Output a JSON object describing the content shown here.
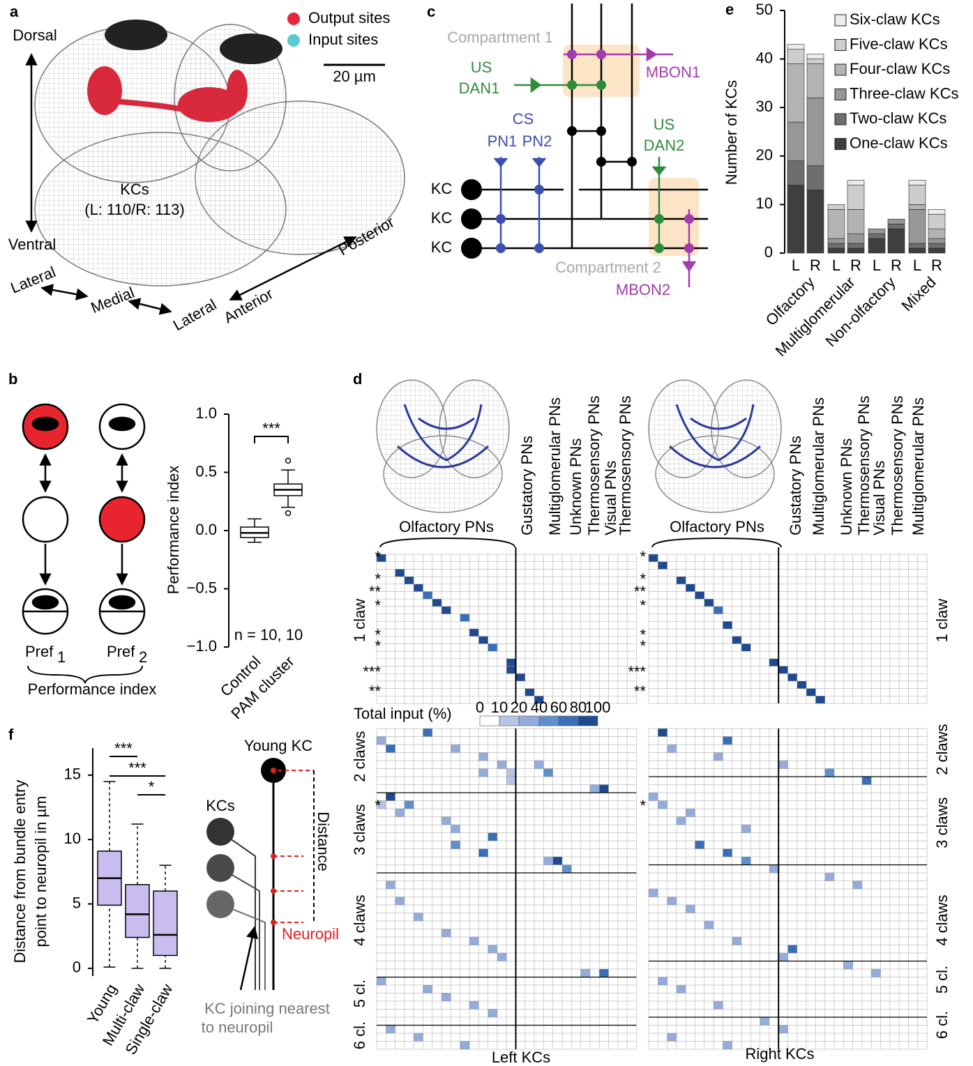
{
  "labels": {
    "a": "a",
    "b": "b",
    "c": "c",
    "d": "d",
    "e": "e",
    "f": "f"
  },
  "panel_a": {
    "legend": [
      "Output sites",
      "Input sites"
    ],
    "scale_bar": "20 µm",
    "dorsal": "Dorsal",
    "ventral": "Ventral",
    "lateral_1": "Lateral",
    "medial": "Medial",
    "lateral_2": "Lateral",
    "anterior": "Anterior",
    "posterior": "Posterior",
    "cell_label": "KCs",
    "cell_count": "(L: 110/R: 113)"
  },
  "panel_b_diagram": {
    "pref_1": "Pref",
    "sub_1": "1",
    "pref_2": "Pref",
    "sub_2": "2",
    "caption": "Performance index"
  },
  "panel_c": {
    "compartment_1": "Compartment 1",
    "us_1": "US",
    "dan_1": "DAN1",
    "mbon_1": "MBON1",
    "cs": "CS",
    "pn_1": "PN1",
    "pn_2": "PN2",
    "us_2": "US",
    "dan_2": "DAN2",
    "kc": [
      "KC",
      "KC",
      "KC"
    ],
    "compartment_2": "Compartment 2",
    "mbon_2": "MBON2"
  },
  "panel_d": {
    "column_groups_left": [
      "Olfactory PNs",
      "Gustatory PNs",
      "Multiglomerular PNs",
      "Unknown PNs",
      "Thermosensory PNs",
      "Visual PNs",
      "Thermosensory PNs"
    ],
    "column_groups_right": [
      "Olfactory PNs",
      "Gustatory PNs",
      "Multiglomerular PNs",
      "Unknown PNs",
      "Thermosensory PNs",
      "Visual PNs",
      "Thermosensory PNs",
      "Multiglomerular PNs"
    ],
    "rows_left": [
      "1 claw",
      "2 claws",
      "3 claws",
      "4 claws",
      "5 cl.",
      "6 cl."
    ],
    "rows_right": [
      "1 claw",
      "2 claws",
      "3 claws",
      "4 claws",
      "5 cl.",
      "6 cl."
    ],
    "scale_title": "Total input (%)",
    "scale_ticks": [
      0,
      10,
      20,
      40,
      60,
      80,
      100
    ],
    "scale_colors": [
      "#ffffff",
      "#b7c4e5",
      "#93acdb",
      "#5f8fcc",
      "#3a6fb8",
      "#1f4a8f"
    ],
    "x_left": "Left KCs",
    "x_right": "Right KCs",
    "stars_left": [
      "*",
      "*",
      "**",
      "*",
      "*",
      "*",
      "***",
      "**",
      "*"
    ],
    "stars_right": [
      "*",
      "*",
      "**",
      "*",
      "*",
      "*",
      "***",
      "**",
      "*"
    ],
    "left": {
      "top_cells": [
        [
          0,
          0,
          80
        ],
        [
          2,
          2,
          80
        ],
        [
          3,
          3,
          80
        ],
        [
          4,
          4,
          80
        ],
        [
          5,
          5,
          70
        ],
        [
          6,
          6,
          80
        ],
        [
          7,
          7,
          80
        ],
        [
          8,
          9,
          70
        ],
        [
          10,
          10,
          80
        ],
        [
          11,
          11,
          90
        ],
        [
          12,
          12,
          70
        ],
        [
          14,
          14,
          80
        ],
        [
          15,
          14,
          80
        ],
        [
          16,
          15,
          80
        ],
        [
          18,
          16,
          80
        ],
        [
          19,
          17,
          80
        ]
      ],
      "bottom_cells": [
        [
          0,
          5,
          70
        ],
        [
          1,
          0,
          20
        ],
        [
          2,
          1,
          60
        ],
        [
          2,
          8,
          30
        ],
        [
          3,
          11,
          20
        ],
        [
          4,
          13,
          20
        ],
        [
          4,
          17,
          20
        ],
        [
          5,
          11,
          20
        ],
        [
          5,
          14,
          15
        ],
        [
          5,
          18,
          50
        ],
        [
          6,
          14,
          15
        ],
        [
          7,
          23,
          20
        ],
        [
          7,
          24,
          80
        ],
        [
          8,
          1,
          80
        ],
        [
          9,
          0,
          15
        ],
        [
          9,
          3,
          40
        ],
        [
          10,
          2,
          20
        ],
        [
          11,
          7,
          20
        ],
        [
          12,
          8,
          20
        ],
        [
          13,
          12,
          70
        ],
        [
          14,
          8,
          40
        ],
        [
          15,
          11,
          60
        ],
        [
          16,
          18,
          30
        ],
        [
          16,
          19,
          80
        ],
        [
          17,
          20,
          40
        ],
        [
          19,
          1,
          20
        ],
        [
          21,
          2,
          20
        ],
        [
          23,
          4,
          20
        ],
        [
          25,
          7,
          20
        ],
        [
          26,
          10,
          20
        ],
        [
          27,
          12,
          30
        ],
        [
          28,
          13,
          20
        ],
        [
          30,
          22,
          20
        ],
        [
          30,
          24,
          60
        ],
        [
          31,
          0,
          20
        ],
        [
          32,
          5,
          20
        ],
        [
          33,
          7,
          20
        ],
        [
          34,
          10,
          20
        ],
        [
          35,
          12,
          20
        ],
        [
          37,
          1,
          20
        ],
        [
          38,
          4,
          20
        ],
        [
          39,
          9,
          20
        ]
      ]
    },
    "right": {
      "top_cells": [
        [
          0,
          0,
          80
        ],
        [
          1,
          1,
          80
        ],
        [
          3,
          3,
          80
        ],
        [
          4,
          4,
          80
        ],
        [
          5,
          5,
          80
        ],
        [
          6,
          6,
          80
        ],
        [
          7,
          7,
          70
        ],
        [
          9,
          8,
          80
        ],
        [
          11,
          9,
          80
        ],
        [
          12,
          10,
          80
        ],
        [
          14,
          13,
          80
        ],
        [
          15,
          14,
          80
        ],
        [
          16,
          15,
          80
        ],
        [
          17,
          16,
          80
        ],
        [
          18,
          17,
          80
        ],
        [
          19,
          18,
          80
        ]
      ],
      "bottom_cells": [
        [
          0,
          1,
          80
        ],
        [
          1,
          8,
          70
        ],
        [
          2,
          2,
          20
        ],
        [
          3,
          7,
          20
        ],
        [
          4,
          14,
          30
        ],
        [
          5,
          19,
          50
        ],
        [
          6,
          23,
          70
        ],
        [
          8,
          0,
          20
        ],
        [
          9,
          1,
          20
        ],
        [
          10,
          4,
          20
        ],
        [
          11,
          3,
          30
        ],
        [
          12,
          10,
          20
        ],
        [
          14,
          5,
          70
        ],
        [
          15,
          8,
          60
        ],
        [
          16,
          10,
          40
        ],
        [
          17,
          13,
          20
        ],
        [
          18,
          19,
          20
        ],
        [
          19,
          22,
          20
        ],
        [
          20,
          0,
          20
        ],
        [
          21,
          2,
          20
        ],
        [
          22,
          4,
          20
        ],
        [
          24,
          6,
          20
        ],
        [
          26,
          9,
          20
        ],
        [
          27,
          15,
          60
        ],
        [
          28,
          14,
          20
        ],
        [
          29,
          21,
          20
        ],
        [
          30,
          24,
          20
        ],
        [
          31,
          1,
          20
        ],
        [
          32,
          3,
          20
        ],
        [
          34,
          7,
          20
        ],
        [
          36,
          12,
          20
        ],
        [
          37,
          14,
          20
        ],
        [
          38,
          2,
          20
        ],
        [
          39,
          8,
          20
        ]
      ]
    }
  },
  "panel_f_diagram": {
    "young_kc": "Young KC",
    "kcs": "KCs",
    "distance": "Distance",
    "neuropil": "Neuropil",
    "note_1": "KC joining nearest",
    "note_2": "to neuropil"
  },
  "chart_data": [
    {
      "type": "stacked_bar",
      "ylabel": "Number of KCs",
      "categories": [
        "L",
        "R",
        "L",
        "R",
        "L",
        "R",
        "L",
        "R"
      ],
      "groups": [
        "Olfactory",
        "Multiglomerular",
        "Non-olfactory",
        "Mixed"
      ],
      "ylim": [
        0,
        50
      ],
      "yticks": [
        0,
        10,
        20,
        30,
        40,
        50
      ],
      "series": [
        {
          "name": "One-claw KCs",
          "color": "#3f3f3f",
          "values": [
            14,
            13,
            1,
            1,
            3,
            5,
            1,
            1
          ]
        },
        {
          "name": "Two-claw KCs",
          "color": "#6e6e6e",
          "values": [
            5,
            5,
            1,
            1,
            1,
            1,
            1,
            1
          ]
        },
        {
          "name": "Three-claw KCs",
          "color": "#979797",
          "values": [
            8,
            14,
            1,
            2,
            1,
            1,
            7,
            1
          ]
        },
        {
          "name": "Four-claw KCs",
          "color": "#b3b3b3",
          "values": [
            12,
            7,
            6,
            5,
            0,
            0,
            1,
            2
          ]
        },
        {
          "name": "Five-claw KCs",
          "color": "#cdcdcd",
          "values": [
            3,
            1,
            1,
            5,
            0,
            0,
            4,
            3
          ]
        },
        {
          "name": "Six-claw KCs",
          "color": "#ececec",
          "values": [
            1,
            1,
            0,
            1,
            0,
            0,
            1,
            1
          ]
        }
      ]
    },
    {
      "type": "box",
      "ylabel": "Performance index",
      "categories": [
        "Control",
        "PAM cluster"
      ],
      "color": "#ffffff",
      "ylim": [
        -1,
        1
      ],
      "yticks": [
        {
          "value": -1,
          "label": "−1.0"
        },
        {
          "value": -0.5,
          "label": "−0.5"
        },
        {
          "value": 0,
          "label": "0.0"
        },
        0.5,
        {
          "value": 1,
          "label": "1.0"
        }
      ],
      "min": [
        -0.1,
        0.2
      ],
      "q1": [
        -0.06,
        0.3
      ],
      "median": [
        -0.02,
        0.35
      ],
      "q3": [
        0.03,
        0.4
      ],
      "max": [
        0.1,
        0.52
      ],
      "outliers": [
        [],
        [
          0.6,
          0.15
        ]
      ],
      "annotations": [
        "***"
      ],
      "note": "n = 10, 10"
    },
    {
      "type": "box",
      "ylabel": [
        "Distance from bundle entry",
        "point to neuropil in µm"
      ],
      "categories": [
        "Young",
        "Multi-claw",
        "Single-claw"
      ],
      "color": "#c9bdf0",
      "ylim": [
        -0.6,
        17.1
      ],
      "yticks": [
        0,
        5,
        10,
        15
      ],
      "min": [
        0.1,
        0,
        0
      ],
      "q1": [
        4.9,
        2.4,
        1
      ],
      "median": [
        7,
        4.2,
        2.6
      ],
      "q3": [
        9.1,
        6.5,
        6
      ],
      "max": [
        14.5,
        11.2,
        8
      ],
      "outliers": [
        [],
        [],
        []
      ],
      "annotations": [
        "***",
        "***",
        "*"
      ]
    }
  ]
}
